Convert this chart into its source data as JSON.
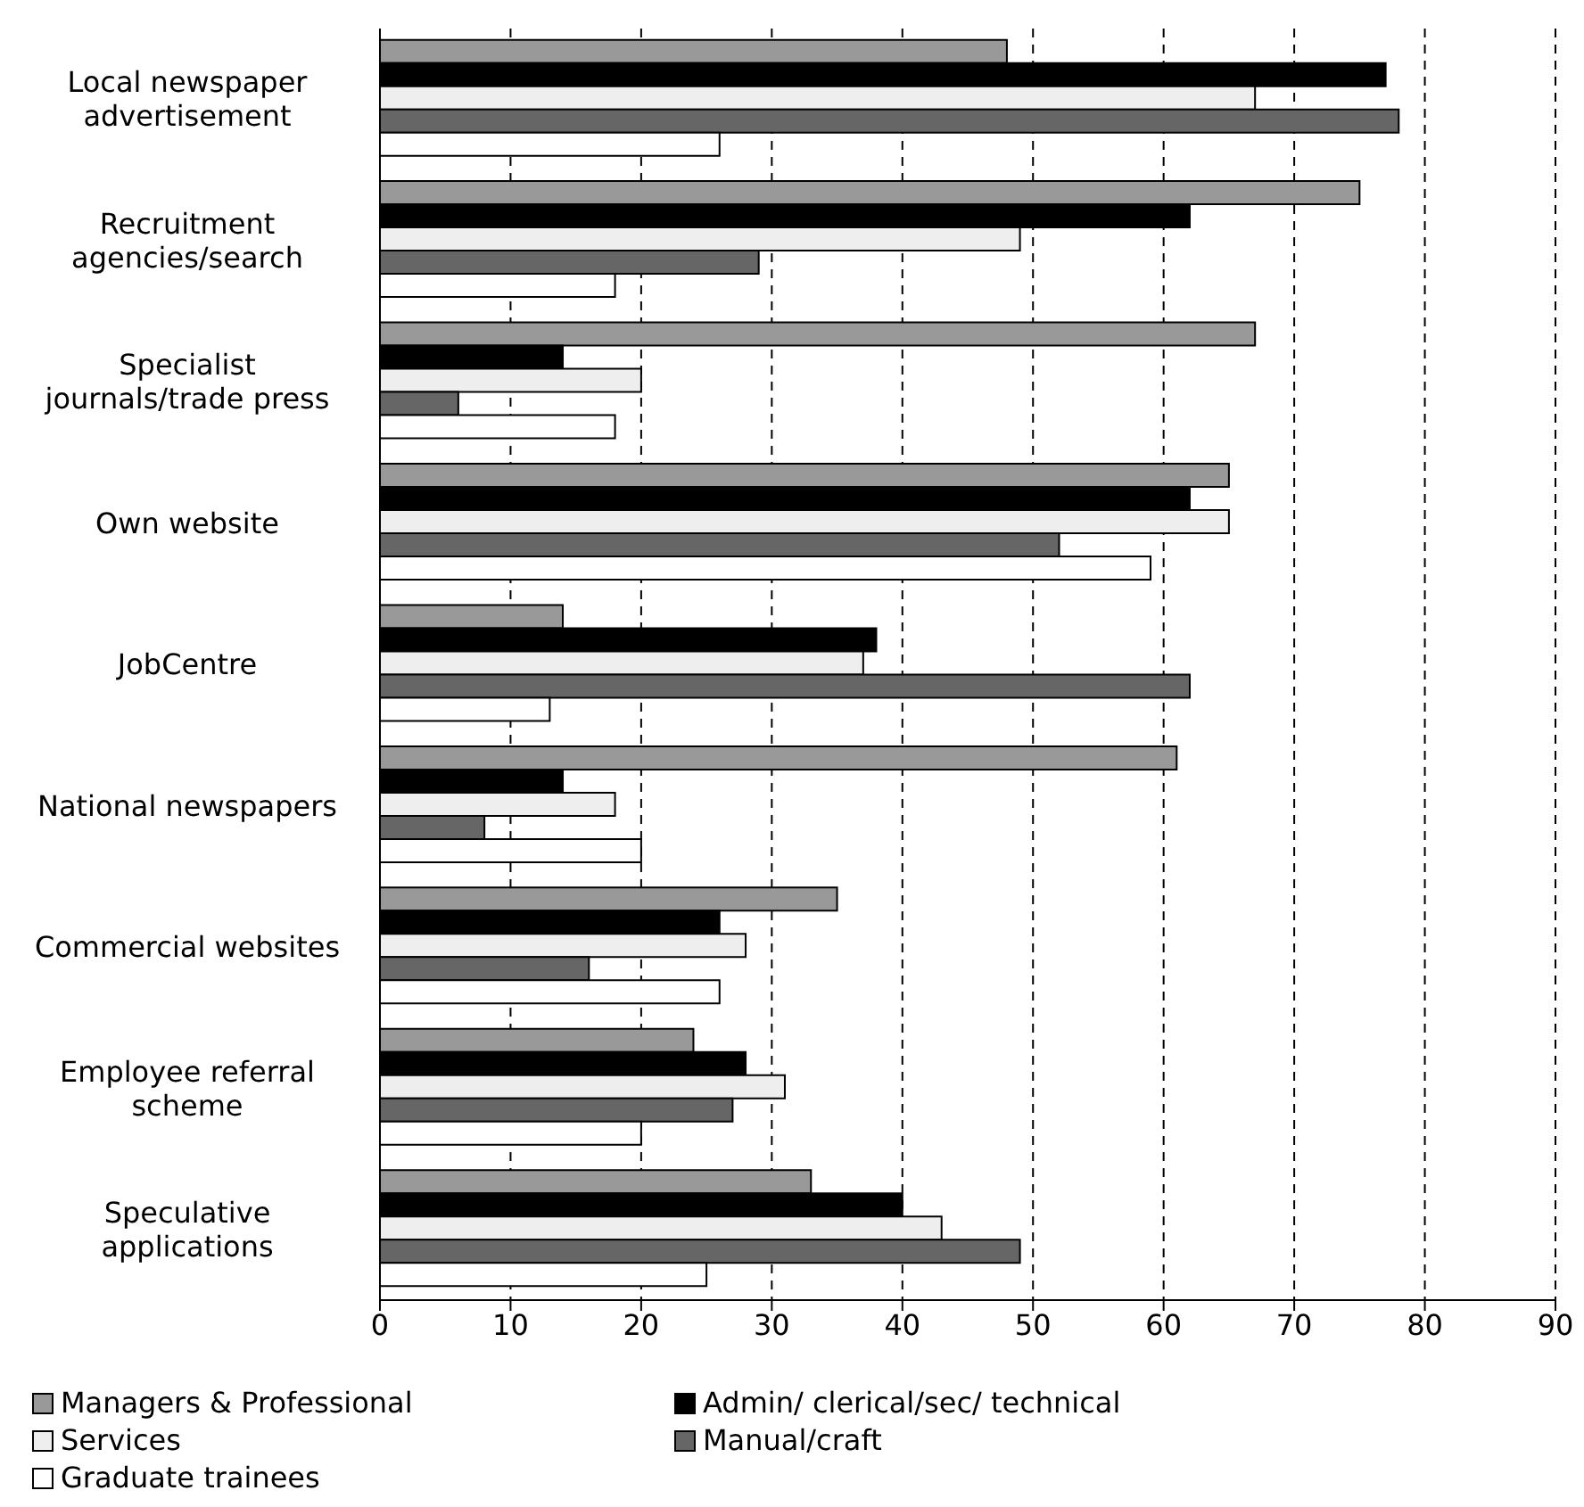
{
  "chart_data": {
    "type": "bar",
    "orientation": "horizontal",
    "categories": [
      "Local newspaper advertisement",
      "Recruitment agencies/search",
      "Specialist journals/trade press",
      "Own website",
      "JobCentre",
      "National newspapers",
      "Commercial websites",
      "Employee referral scheme",
      "Speculative applications"
    ],
    "series": [
      {
        "name": "Managers & Professional",
        "color": "#999999",
        "values": [
          48,
          75,
          67,
          65,
          14,
          61,
          35,
          24,
          33
        ]
      },
      {
        "name": "Admin/ clerical/sec/ technical",
        "color": "#000000",
        "values": [
          77,
          62,
          14,
          62,
          38,
          14,
          26,
          28,
          40
        ]
      },
      {
        "name": "Services",
        "color": "#eeeeee",
        "values": [
          67,
          49,
          20,
          65,
          37,
          18,
          28,
          31,
          43
        ]
      },
      {
        "name": "Manual/craft",
        "color": "#666666",
        "values": [
          78,
          29,
          6,
          52,
          62,
          8,
          16,
          27,
          49
        ]
      },
      {
        "name": "Graduate trainees",
        "color": "#ffffff",
        "values": [
          26,
          18,
          18,
          59,
          13,
          20,
          26,
          20,
          25
        ]
      }
    ],
    "xlim": [
      0,
      90
    ],
    "xticks": [
      0,
      10,
      20,
      30,
      40,
      50,
      60,
      70,
      80,
      90
    ],
    "grid": "x",
    "legend": "bottom"
  }
}
